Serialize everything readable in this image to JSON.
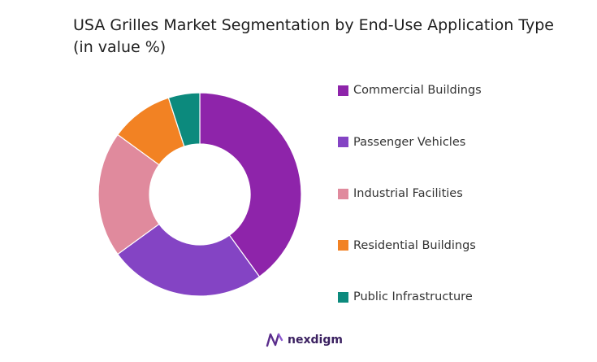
{
  "title": "USA Grilles Market Segmentation by End-Use Application Type  (in value %)",
  "brand": {
    "name": "nexdigm",
    "logo_icon": "nexdigm-logo-icon"
  },
  "chart_data": {
    "type": "donut",
    "title": "USA Grilles Market Segmentation by End-Use Application Type  (in value %)",
    "legend_position": "right",
    "categories": [
      "Commercial Buildings",
      "Passenger Vehicles",
      "Industrial Facilities",
      "Residential Buildings",
      "Public Infrastructure"
    ],
    "values": [
      40,
      25,
      20,
      10,
      5
    ],
    "unit": "%",
    "colors": [
      "#8e24aa",
      "#8444c4",
      "#e08a9d",
      "#f28223",
      "#0c8a7d"
    ]
  }
}
